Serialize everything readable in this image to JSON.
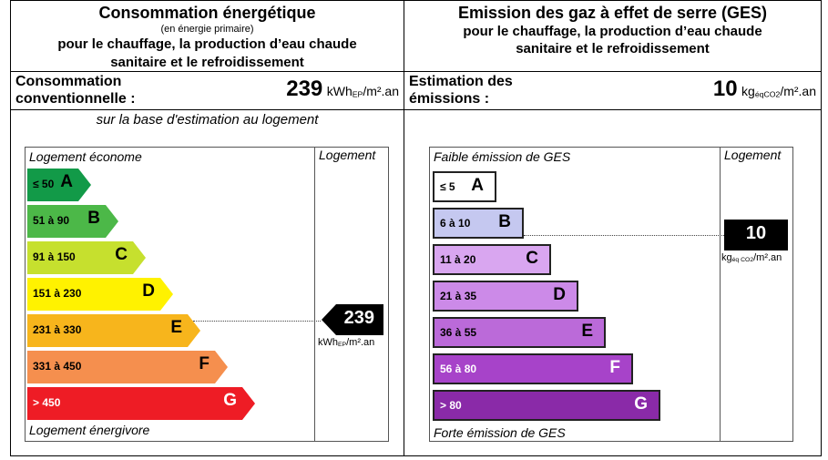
{
  "energy": {
    "title": "Consommation énergétique",
    "subtitle": "(en énergie primaire)",
    "desc_line1": "pour le chauffage, la production d’eau chaude",
    "desc_line2": "sanitaire et le refroidissement",
    "label_line1": "Consommation",
    "label_line2": "conventionnelle :",
    "value": "239",
    "unit_pre": "kWh",
    "unit_sub": "EP",
    "unit_post": "/m².an",
    "basis": "sur la base d'estimation au logement",
    "top_label": "Logement économe",
    "bottom_label": "Logement énergivore",
    "column_header": "Logement",
    "indicator_value": "239",
    "indicator_unit_pre": "kWh",
    "indicator_unit_sub": "EP",
    "indicator_unit_post": "/m².an",
    "classes": [
      {
        "range": "≤ 50",
        "letter": "A",
        "color": "#129a48"
      },
      {
        "range": "51 à 90",
        "letter": "B",
        "color": "#4cb848"
      },
      {
        "range": "91 à 150",
        "letter": "C",
        "color": "#c6e02e"
      },
      {
        "range": "151 à 230",
        "letter": "D",
        "color": "#fff200"
      },
      {
        "range": "231 à 330",
        "letter": "E",
        "color": "#f7b51c"
      },
      {
        "range": "331 à 450",
        "letter": "F",
        "color": "#f58f4e"
      },
      {
        "range": "> 450",
        "letter": "G",
        "color": "#ee1c25"
      }
    ],
    "text_colors": [
      "#000000",
      "#000000",
      "#000000",
      "#000000",
      "#000000",
      "#000000",
      "#ffffff"
    ]
  },
  "ges": {
    "title": "Emission des gaz à effet de serre (GES)",
    "desc_line1": "pour le chauffage, la production d’eau chaude",
    "desc_line2": "sanitaire et le refroidissement",
    "label_line1": "Estimation des",
    "label_line2": "émissions :",
    "value": "10",
    "unit_pre": "kg",
    "unit_sub": "éqCO2",
    "unit_post": "/m².an",
    "top_label": "Faible émission de GES",
    "bottom_label": "Forte émission de GES",
    "column_header": "Logement",
    "indicator_value": "10",
    "indicator_unit_pre": "kg",
    "indicator_unit_sub": "éq CO2",
    "indicator_unit_post": "/m².an",
    "classes": [
      {
        "range": "≤ 5",
        "letter": "A",
        "color": "#ffffff"
      },
      {
        "range": "6 à 10",
        "letter": "B",
        "color": "#c5c8f0"
      },
      {
        "range": "11 à 20",
        "letter": "C",
        "color": "#d9a6f0"
      },
      {
        "range": "21 à 35",
        "letter": "D",
        "color": "#cc8ae8"
      },
      {
        "range": "36 à 55",
        "letter": "E",
        "color": "#bb6ad9"
      },
      {
        "range": "56 à 80",
        "letter": "F",
        "color": "#a743c9"
      },
      {
        "range": "> 80",
        "letter": "G",
        "color": "#8a2aa8"
      }
    ],
    "text_colors": [
      "#000000",
      "#000000",
      "#000000",
      "#000000",
      "#000000",
      "#ffffff",
      "#ffffff"
    ]
  },
  "chart_data": [
    {
      "type": "bar",
      "categories": [
        "A",
        "B",
        "C",
        "D",
        "E",
        "F",
        "G"
      ],
      "ranges": [
        "≤ 50",
        "51 à 90",
        "91 à 150",
        "151 à 230",
        "231 à 330",
        "331 à 450",
        "> 450"
      ],
      "value": 239,
      "value_class": "E",
      "unit": "kWhEP/m².an"
    },
    {
      "type": "bar",
      "categories": [
        "A",
        "B",
        "C",
        "D",
        "E",
        "F",
        "G"
      ],
      "ranges": [
        "≤ 5",
        "6 à 10",
        "11 à 20",
        "21 à 35",
        "36 à 55",
        "56 à 80",
        "> 80"
      ],
      "value": 10,
      "value_class": "B",
      "unit": "kgéqCO2/m².an"
    }
  ]
}
